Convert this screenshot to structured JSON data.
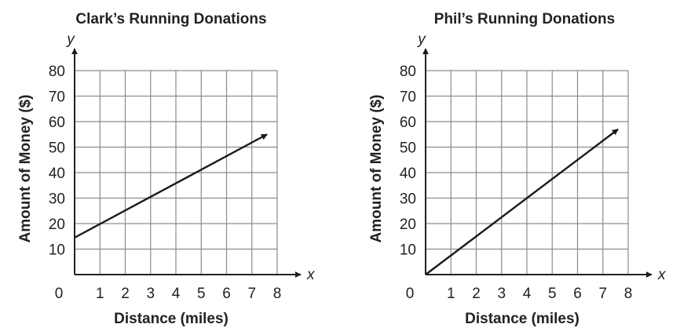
{
  "chart_data": [
    {
      "type": "line",
      "title": "Clark’s Running Donations",
      "xlabel": "Distance (miles)",
      "ylabel": "Amount of Money ($)",
      "x_var": "x",
      "y_var": "y",
      "xlim": [
        0,
        8
      ],
      "ylim": [
        0,
        80
      ],
      "x_ticks": [
        "0",
        "1",
        "2",
        "3",
        "4",
        "5",
        "6",
        "7",
        "8"
      ],
      "y_ticks": [
        "10",
        "20",
        "30",
        "40",
        "50",
        "60",
        "70",
        "80"
      ],
      "grid": true,
      "series": [
        {
          "x": [
            0,
            7.6
          ],
          "y": [
            14.5,
            55
          ],
          "arrow": "end"
        }
      ]
    },
    {
      "type": "line",
      "title": "Phil’s Running Donations",
      "xlabel": "Distance (miles)",
      "ylabel": "Amount of Money ($)",
      "x_var": "x",
      "y_var": "y",
      "xlim": [
        0,
        8
      ],
      "ylim": [
        0,
        80
      ],
      "x_ticks": [
        "0",
        "1",
        "2",
        "3",
        "4",
        "5",
        "6",
        "7",
        "8"
      ],
      "y_ticks": [
        "10",
        "20",
        "30",
        "40",
        "50",
        "60",
        "70",
        "80"
      ],
      "grid": true,
      "series": [
        {
          "x": [
            0,
            7.6
          ],
          "y": [
            0,
            57
          ],
          "arrow": "end"
        }
      ]
    }
  ]
}
